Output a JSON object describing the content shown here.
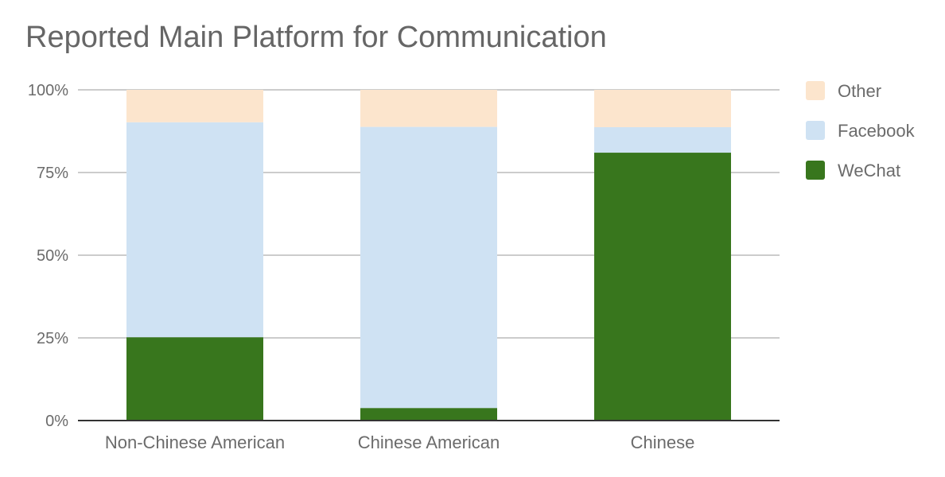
{
  "chart_data": {
    "type": "bar",
    "stacked": true,
    "title": "Reported Main Platform for Communication",
    "categories": [
      "Non-Chinese American",
      "Chinese American",
      "Chinese"
    ],
    "series": [
      {
        "name": "WeChat",
        "color": "#38761d",
        "values": [
          25.2,
          3.8,
          81.0
        ]
      },
      {
        "name": "Facebook",
        "color": "#cfe2f3",
        "values": [
          65.0,
          85.0,
          7.7
        ]
      },
      {
        "name": "Other",
        "color": "#fce5cd",
        "values": [
          9.8,
          11.2,
          11.3
        ]
      }
    ],
    "y_ticks": [
      "0%",
      "25%",
      "50%",
      "75%",
      "100%"
    ],
    "ylim": [
      0,
      100
    ],
    "grid": true,
    "legend_position": "right"
  }
}
